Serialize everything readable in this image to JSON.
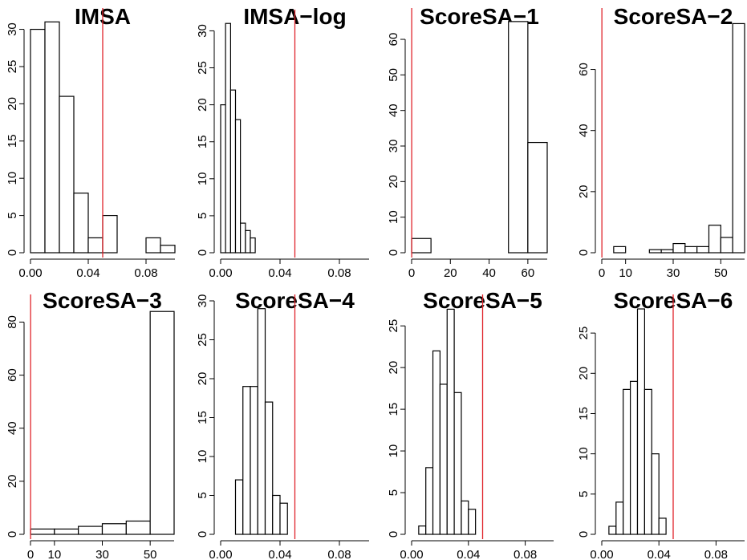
{
  "chart_data": [
    {
      "type": "bar",
      "title": "IMSA",
      "bins": [
        [
          0,
          0.01
        ],
        [
          0.01,
          0.02
        ],
        [
          0.02,
          0.03
        ],
        [
          0.03,
          0.04
        ],
        [
          0.04,
          0.05
        ],
        [
          0.05,
          0.06
        ],
        [
          0.06,
          0.07
        ],
        [
          0.07,
          0.08
        ],
        [
          0.08,
          0.09
        ],
        [
          0.09,
          0.1
        ]
      ],
      "values": [
        30,
        31,
        21,
        8,
        2,
        5,
        0,
        0,
        2,
        1
      ],
      "xlim": [
        0,
        0.1
      ],
      "ylim": [
        0,
        32
      ],
      "xticks": [
        0,
        0.04,
        0.08
      ],
      "xtick_labels": [
        "0.00",
        "0.04",
        "0.08"
      ],
      "yticks": [
        0,
        5,
        10,
        15,
        20,
        25,
        30
      ],
      "ytick_labels": [
        "0",
        "5",
        "10",
        "15",
        "20",
        "25",
        "30"
      ],
      "ref_x": 0.05,
      "ref_color": "#e0242b"
    },
    {
      "type": "bar",
      "title": "IMSA−log",
      "bins": [
        [
          0,
          0.0033
        ],
        [
          0.0033,
          0.0067
        ],
        [
          0.0067,
          0.01
        ],
        [
          0.01,
          0.0133
        ],
        [
          0.0133,
          0.0167
        ],
        [
          0.0167,
          0.02
        ],
        [
          0.02,
          0.0233
        ],
        [
          0.0233,
          0.0267
        ],
        [
          0.0267,
          0.03
        ]
      ],
      "values": [
        20,
        31,
        22,
        18,
        4,
        3,
        2,
        0,
        0
      ],
      "xlim": [
        0,
        0.1
      ],
      "ylim": [
        0,
        32
      ],
      "xticks": [
        0,
        0.04,
        0.08
      ],
      "xtick_labels": [
        "0.00",
        "0.04",
        "0.08"
      ],
      "yticks": [
        0,
        5,
        10,
        15,
        20,
        25,
        30
      ],
      "ytick_labels": [
        "0",
        "5",
        "10",
        "15",
        "20",
        "25",
        "30"
      ],
      "ref_x": 0.05,
      "ref_color": "#e0242b"
    },
    {
      "type": "bar",
      "title": "ScoreSA−1",
      "bins": [
        [
          0,
          10
        ],
        [
          10,
          20
        ],
        [
          20,
          30
        ],
        [
          30,
          40
        ],
        [
          40,
          50
        ],
        [
          50,
          60
        ],
        [
          60,
          70
        ]
      ],
      "values": [
        4,
        0,
        0,
        0,
        0,
        65,
        31
      ],
      "xlim": [
        0,
        70
      ],
      "ylim": [
        0,
        67
      ],
      "xticks": [
        0,
        20,
        40,
        60
      ],
      "xtick_labels": [
        "0",
        "20",
        "40",
        "60"
      ],
      "yticks": [
        0,
        10,
        20,
        30,
        40,
        50,
        60
      ],
      "ytick_labels": [
        "0",
        "10",
        "20",
        "30",
        "40",
        "50",
        "60"
      ],
      "ref_x": 0.05,
      "ref_color": "#e0242b"
    },
    {
      "type": "bar",
      "title": "ScoreSA−2",
      "bins": [
        [
          5,
          10
        ],
        [
          10,
          15
        ],
        [
          15,
          20
        ],
        [
          20,
          25
        ],
        [
          25,
          30
        ],
        [
          30,
          35
        ],
        [
          35,
          40
        ],
        [
          40,
          45
        ],
        [
          45,
          50
        ],
        [
          50,
          55
        ],
        [
          55,
          60
        ]
      ],
      "values": [
        2,
        0,
        0,
        1,
        1,
        3,
        2,
        2,
        9,
        5,
        75
      ],
      "xlim": [
        0,
        60
      ],
      "ylim": [
        0,
        78
      ],
      "xticks": [
        0,
        10,
        30,
        50
      ],
      "xtick_labels": [
        "0",
        "10",
        "30",
        "50"
      ],
      "yticks": [
        0,
        20,
        40,
        60
      ],
      "ytick_labels": [
        "0",
        "20",
        "40",
        "60"
      ],
      "ref_x": 0.05,
      "ref_color": "#e0242b"
    },
    {
      "type": "bar",
      "title": "ScoreSA−3",
      "bins": [
        [
          0,
          10
        ],
        [
          10,
          20
        ],
        [
          20,
          30
        ],
        [
          30,
          40
        ],
        [
          40,
          50
        ],
        [
          50,
          60
        ]
      ],
      "values": [
        2,
        2,
        3,
        4,
        5,
        84
      ],
      "xlim": [
        0,
        60
      ],
      "ylim": [
        0,
        88
      ],
      "xticks": [
        0,
        10,
        30,
        50
      ],
      "xtick_labels": [
        "0",
        "10",
        "30",
        "50"
      ],
      "yticks": [
        0,
        20,
        40,
        60,
        80
      ],
      "ytick_labels": [
        "0",
        "20",
        "40",
        "60",
        "80"
      ],
      "ref_x": 0.05,
      "ref_color": "#e0242b"
    },
    {
      "type": "bar",
      "title": "ScoreSA−4",
      "bins": [
        [
          0.01,
          0.015
        ],
        [
          0.015,
          0.02
        ],
        [
          0.02,
          0.025
        ],
        [
          0.025,
          0.03
        ],
        [
          0.03,
          0.035
        ],
        [
          0.035,
          0.04
        ],
        [
          0.04,
          0.045
        ]
      ],
      "values": [
        7,
        19,
        19,
        29,
        17,
        5,
        4
      ],
      "xlim": [
        0,
        0.1
      ],
      "ylim": [
        0,
        30
      ],
      "xticks": [
        0,
        0.04,
        0.08
      ],
      "xtick_labels": [
        "0.00",
        "0.04",
        "0.08"
      ],
      "yticks": [
        0,
        5,
        10,
        15,
        20,
        25,
        30
      ],
      "ytick_labels": [
        "0",
        "5",
        "10",
        "15",
        "20",
        "25",
        "30"
      ],
      "ref_x": 0.05,
      "ref_color": "#e0242b"
    },
    {
      "type": "bar",
      "title": "ScoreSA−5",
      "bins": [
        [
          0.005,
          0.01
        ],
        [
          0.01,
          0.015
        ],
        [
          0.015,
          0.02
        ],
        [
          0.02,
          0.025
        ],
        [
          0.025,
          0.03
        ],
        [
          0.03,
          0.035
        ],
        [
          0.035,
          0.04
        ],
        [
          0.04,
          0.045
        ]
      ],
      "values": [
        1,
        8,
        22,
        18,
        27,
        17,
        4,
        3
      ],
      "xlim": [
        0,
        0.1
      ],
      "ylim": [
        0,
        28
      ],
      "xticks": [
        0,
        0.04,
        0.08
      ],
      "xtick_labels": [
        "0.00",
        "0.04",
        "0.08"
      ],
      "yticks": [
        0,
        5,
        10,
        15,
        20,
        25
      ],
      "ytick_labels": [
        "0",
        "5",
        "10",
        "15",
        "20",
        "25"
      ],
      "ref_x": 0.05,
      "ref_color": "#e0242b"
    },
    {
      "type": "bar",
      "title": "ScoreSA−6",
      "bins": [
        [
          0.005,
          0.01
        ],
        [
          0.01,
          0.015
        ],
        [
          0.015,
          0.02
        ],
        [
          0.02,
          0.025
        ],
        [
          0.025,
          0.03
        ],
        [
          0.03,
          0.035
        ],
        [
          0.035,
          0.04
        ],
        [
          0.04,
          0.045
        ]
      ],
      "values": [
        1,
        4,
        18,
        19,
        28,
        18,
        10,
        2
      ],
      "xlim": [
        0,
        0.1
      ],
      "ylim": [
        0,
        29
      ],
      "xticks": [
        0,
        0.04,
        0.08
      ],
      "xtick_labels": [
        "0.00",
        "0.04",
        "0.08"
      ],
      "yticks": [
        0,
        5,
        10,
        15,
        20,
        25
      ],
      "ytick_labels": [
        "0",
        "5",
        "10",
        "15",
        "20",
        "25"
      ],
      "ref_x": 0.05,
      "ref_color": "#e0242b"
    }
  ]
}
